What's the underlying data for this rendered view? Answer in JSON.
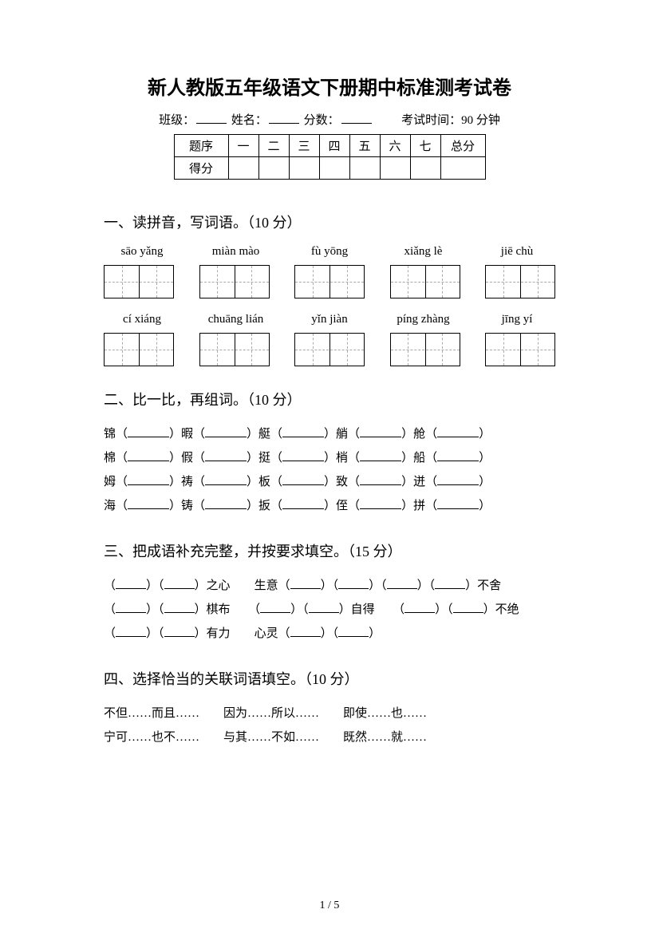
{
  "title": "新人教版五年级语文下册期中标准测考试卷",
  "info": {
    "class_label": "班级：",
    "name_label": "姓名：",
    "score_label": "分数：",
    "exam_time_label": "考试时间：90 分钟"
  },
  "score_table": {
    "row1": [
      "题序",
      "一",
      "二",
      "三",
      "四",
      "五",
      "六",
      "七",
      "总分"
    ],
    "row2_label": "得分"
  },
  "section1": {
    "title": "一、读拼音，写词语。（10 分）",
    "row1": [
      "sāo yǎng",
      "miàn mào",
      "fù yōng",
      "xiǎng lè",
      "jiē chù"
    ],
    "row2": [
      "cí xiáng",
      "chuāng lián",
      "yǐn jiàn",
      "píng zhàng",
      "jīng yí"
    ]
  },
  "section2": {
    "title": "二、比一比，再组词。（10 分）",
    "lines": [
      [
        "锦（",
        "）暇（",
        "）艇（",
        "）艄（",
        "）舱（",
        "）"
      ],
      [
        "棉（",
        "）假（",
        "）挺（",
        "）梢（",
        "）船（",
        "）"
      ],
      [
        "姆（",
        "）祷（",
        "）板（",
        "）致（",
        "）迸（",
        "）"
      ],
      [
        "海（",
        "）铸（",
        "）扳（",
        "）侄（",
        "）拼（",
        "）"
      ]
    ]
  },
  "section3": {
    "title": "三、把成语补充完整，并按要求填空。（15 分）",
    "groups": [
      [
        "（",
        "）（",
        "）之心",
        "生意（",
        "）（",
        "）",
        "（",
        "）（",
        "）不舍"
      ],
      [
        "（",
        "）（",
        "）棋布",
        "（",
        "）（",
        "）自得",
        "（",
        "）（",
        "）不绝"
      ],
      [
        "（",
        "）（",
        "）有力",
        "心灵（",
        "）（",
        "）"
      ]
    ]
  },
  "section4": {
    "title": "四、选择恰当的关联词语填空。（10 分）",
    "options_line1": "不但……而且……　　因为……所以……　　即使……也……",
    "options_line2": "宁可……也不……　　与其……不如……　　既然……就……"
  },
  "page_number": "1 / 5"
}
